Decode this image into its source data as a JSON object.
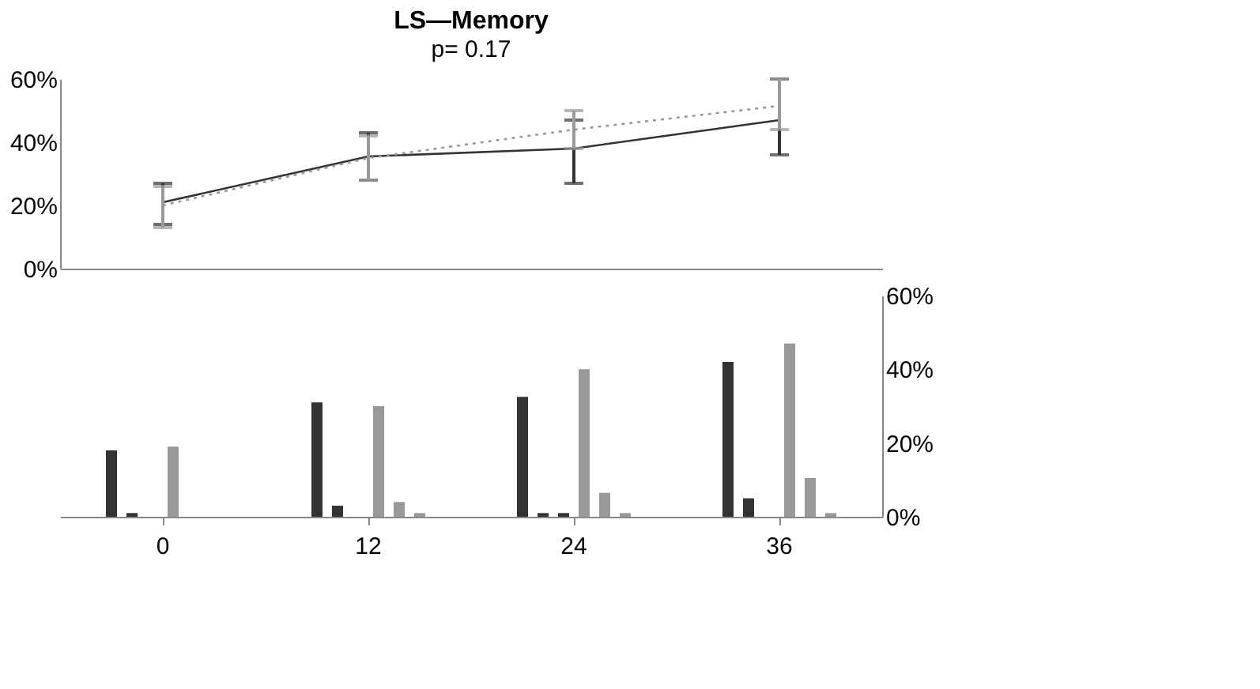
{
  "chart_data": [
    {
      "type": "line",
      "title": "LS—Memory",
      "subtitle": "p= 0.17",
      "categories": [
        "0",
        "12",
        "24",
        "36"
      ],
      "series": [
        {
          "color": "#333333",
          "line_style": "solid",
          "values": [
            21,
            35.5,
            38,
            47
          ],
          "errors": [
            [
              14,
              27
            ],
            [
              28,
              43
            ],
            [
              27,
              47
            ],
            [
              36,
              60
            ]
          ]
        },
        {
          "color": "#999999",
          "line_style": "dotted",
          "values": [
            20,
            35,
            44,
            51.5
          ],
          "errors": [
            [
              13,
              26
            ],
            [
              28,
              42
            ],
            [
              38,
              50
            ],
            [
              44,
              60
            ]
          ]
        }
      ],
      "ylim": [
        0,
        60
      ],
      "yticks": [
        {
          "value": 0,
          "label": "0%"
        },
        {
          "value": 20,
          "label": "20%"
        },
        {
          "value": 40,
          "label": "40%"
        },
        {
          "value": 60,
          "label": "60%"
        }
      ],
      "tick_labels": "y"
    },
    {
      "type": "bar",
      "categories": [
        "0",
        "12",
        "24",
        "36"
      ],
      "series": [
        {
          "color": "#333333",
          "axis": "y2",
          "values": [
            18,
            31,
            32.5,
            42
          ]
        },
        {
          "color": "#333333",
          "axis": "y2",
          "values": [
            1,
            3,
            1,
            5
          ]
        },
        {
          "color": "#333333",
          "axis": "y2",
          "values": [
            0,
            0,
            1,
            0
          ]
        },
        {
          "color": "#999999",
          "axis": "y2",
          "values": [
            19,
            30,
            40,
            47
          ]
        },
        {
          "color": "#999999",
          "axis": "y2",
          "values": [
            0,
            4,
            6.5,
            10.5
          ]
        },
        {
          "color": "#999999",
          "axis": "y2",
          "values": [
            0,
            1,
            1,
            1
          ]
        }
      ],
      "y2lim": [
        0,
        60
      ],
      "y2ticks": [
        {
          "value": 0,
          "label": "0%"
        },
        {
          "value": 20,
          "label": "20%"
        },
        {
          "value": 40,
          "label": "40%"
        },
        {
          "value": 60,
          "label": "60%"
        }
      ],
      "legend": false
    }
  ]
}
